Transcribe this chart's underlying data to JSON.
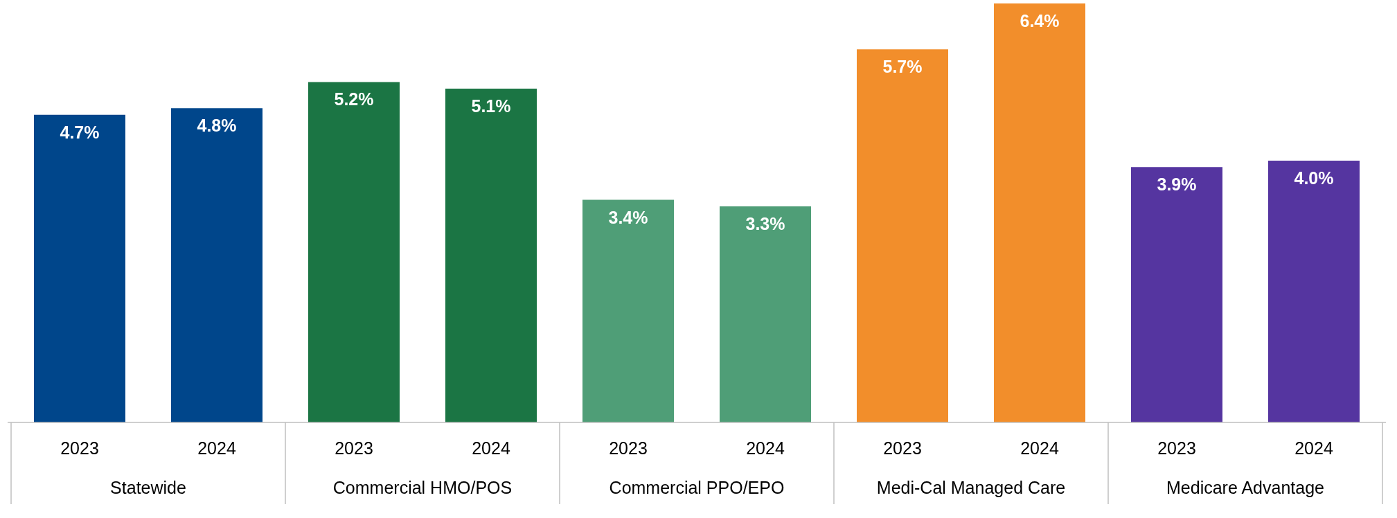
{
  "chart_data": {
    "type": "bar",
    "categories": [
      "2023",
      "2024",
      "2023",
      "2024",
      "2023",
      "2024",
      "2023",
      "2024",
      "2023",
      "2024"
    ],
    "values": [
      4.7,
      4.8,
      5.2,
      5.1,
      3.4,
      3.3,
      5.7,
      6.4,
      3.9,
      4.0
    ],
    "colors": [
      "#00468b",
      "#00468b",
      "#1b7544",
      "#1b7544",
      "#4f9e77",
      "#4f9e77",
      "#f28e2b",
      "#f28e2b",
      "#5535a0",
      "#5535a0"
    ],
    "value_labels": [
      "4.7%",
      "4.8%",
      "5.2%",
      "5.1%",
      "3.4%",
      "3.3%",
      "5.7%",
      "6.4%",
      "3.9%",
      "4.0%"
    ],
    "annotations": [
      "Statewide",
      "Commercial HMO/POS",
      "Commercial PPO/EPO",
      "Medi-Cal Managed Care",
      "Medicare Advantage"
    ]
  }
}
